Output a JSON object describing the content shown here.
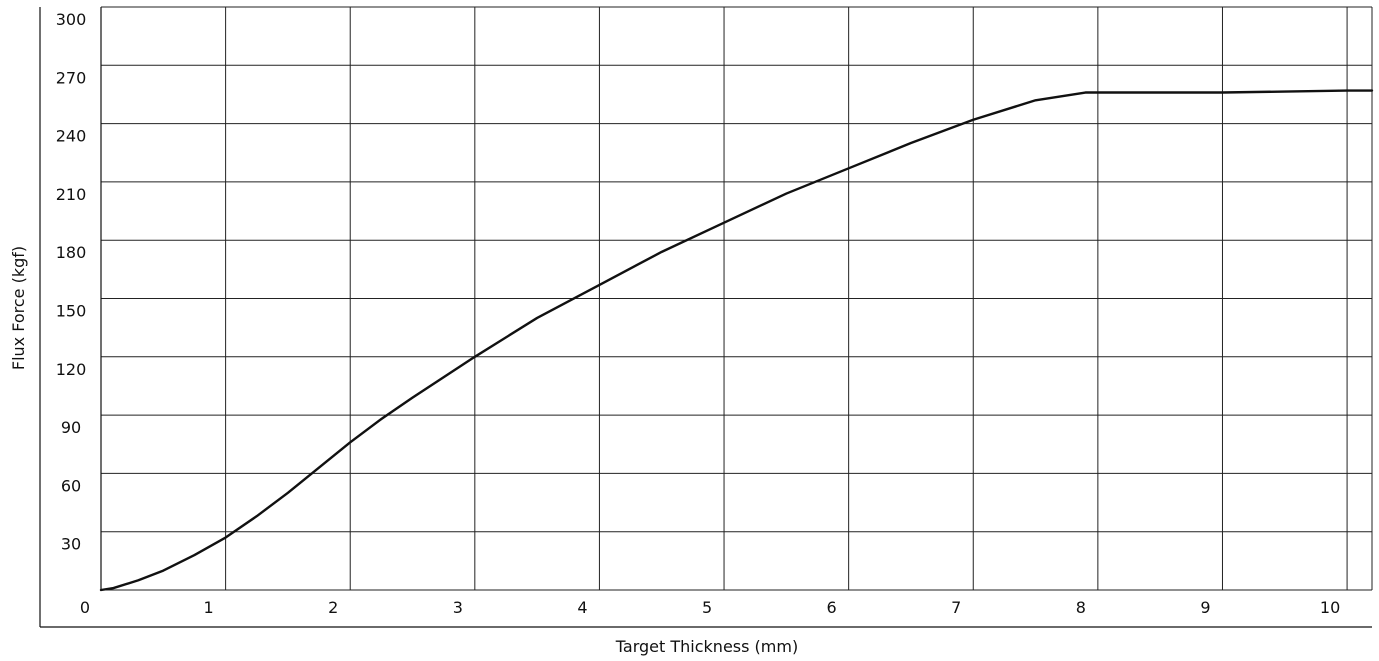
{
  "chart_data": {
    "type": "line",
    "title": "",
    "xlabel": "Target Thickness (mm)",
    "ylabel": "Flux Force (kgf)",
    "xlim": [
      0,
      10.2
    ],
    "ylim": [
      0,
      300
    ],
    "grid": true,
    "x_ticks": [
      "0",
      "1",
      "2",
      "3",
      "4",
      "5",
      "6",
      "7",
      "8",
      "9",
      "10"
    ],
    "y_ticks": [
      "30",
      "60",
      "90",
      "120",
      "150",
      "180",
      "210",
      "240",
      "270",
      "300"
    ],
    "series": [
      {
        "color": "#111111",
        "x": [
          0,
          0.1,
          0.3,
          0.5,
          0.75,
          1.0,
          1.25,
          1.5,
          1.75,
          2.0,
          2.25,
          2.5,
          3.0,
          3.5,
          4.0,
          4.5,
          5.0,
          5.5,
          6.0,
          6.5,
          7.0,
          7.5,
          7.9,
          8.0,
          8.5,
          9.0,
          9.5,
          10.0,
          10.2
        ],
        "y": [
          0,
          1,
          5,
          10,
          18,
          27,
          38,
          50,
          63,
          76,
          88,
          99,
          120,
          140,
          157,
          174,
          189,
          204,
          217,
          230,
          242,
          252,
          256,
          256,
          256,
          256,
          256.5,
          257,
          257
        ]
      }
    ]
  }
}
